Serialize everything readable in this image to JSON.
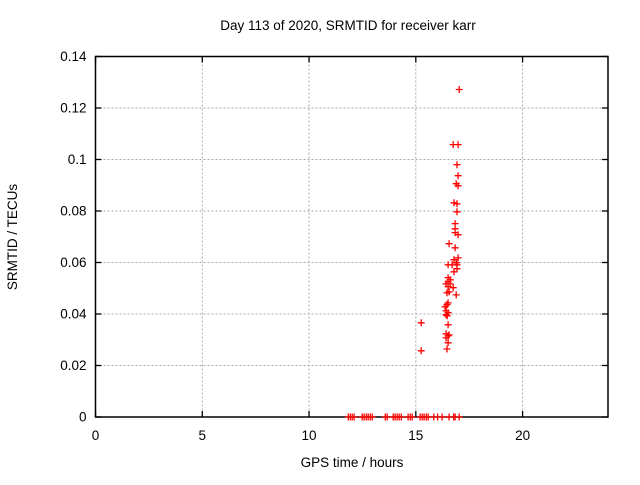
{
  "chart_data": {
    "type": "scatter",
    "title": "Day 113 of 2020, SRMTID for receiver karr",
    "xlabel": "GPS time / hours",
    "ylabel": "SRMTID / TECUs",
    "xlim": [
      0,
      24
    ],
    "ylim": [
      0,
      0.14
    ],
    "grid": true,
    "legend": "none",
    "grid_color": "#a8a8a8",
    "border_color": "#000000",
    "background_color": "#ffffff",
    "marker": {
      "shape": "plus",
      "color": "#ff0000",
      "size": 7
    },
    "x_ticks": [
      {
        "v": 0,
        "label": "0"
      },
      {
        "v": 5,
        "label": "5"
      },
      {
        "v": 10,
        "label": "10"
      },
      {
        "v": 15,
        "label": "15"
      },
      {
        "v": 20,
        "label": "20"
      }
    ],
    "y_ticks": [
      {
        "v": 0,
        "label": "0"
      },
      {
        "v": 0.02,
        "label": "0.02"
      },
      {
        "v": 0.04,
        "label": "0.04"
      },
      {
        "v": 0.06,
        "label": "0.06"
      },
      {
        "v": 0.08,
        "label": "0.08"
      },
      {
        "v": 0.1,
        "label": "0.1"
      },
      {
        "v": 0.12,
        "label": "0.12"
      },
      {
        "v": 0.14,
        "label": "0.14"
      }
    ],
    "series": [
      {
        "name": "SRMTID",
        "points": [
          [
            17.03,
            0.1272
          ],
          [
            16.75,
            0.1058
          ],
          [
            16.98,
            0.1058
          ],
          [
            16.93,
            0.098
          ],
          [
            16.98,
            0.0937
          ],
          [
            16.89,
            0.0906
          ],
          [
            16.98,
            0.0898
          ],
          [
            16.79,
            0.0832
          ],
          [
            16.93,
            0.0828
          ],
          [
            16.93,
            0.0797
          ],
          [
            16.84,
            0.0751
          ],
          [
            16.84,
            0.0731
          ],
          [
            16.84,
            0.0716
          ],
          [
            16.98,
            0.0708
          ],
          [
            16.56,
            0.0673
          ],
          [
            16.84,
            0.0657
          ],
          [
            16.98,
            0.0618
          ],
          [
            16.79,
            0.0611
          ],
          [
            16.89,
            0.0599
          ],
          [
            16.51,
            0.0591
          ],
          [
            16.7,
            0.0591
          ],
          [
            16.93,
            0.0591
          ],
          [
            16.93,
            0.0576
          ],
          [
            16.79,
            0.0564
          ],
          [
            16.51,
            0.0541
          ],
          [
            16.61,
            0.0533
          ],
          [
            16.51,
            0.0525
          ],
          [
            16.42,
            0.0517
          ],
          [
            16.61,
            0.0517
          ],
          [
            16.51,
            0.0506
          ],
          [
            16.75,
            0.0502
          ],
          [
            16.56,
            0.0486
          ],
          [
            16.46,
            0.0482
          ],
          [
            16.89,
            0.0474
          ],
          [
            16.51,
            0.0443
          ],
          [
            16.46,
            0.0436
          ],
          [
            16.37,
            0.0428
          ],
          [
            16.42,
            0.0412
          ],
          [
            16.51,
            0.0405
          ],
          [
            16.42,
            0.0397
          ],
          [
            16.47,
            0.0393
          ],
          [
            15.25,
            0.0366
          ],
          [
            16.51,
            0.0358
          ],
          [
            16.42,
            0.0323
          ],
          [
            16.56,
            0.0319
          ],
          [
            16.51,
            0.0315
          ],
          [
            16.42,
            0.0307
          ],
          [
            16.51,
            0.0288
          ],
          [
            16.46,
            0.0264
          ],
          [
            15.25,
            0.0257
          ],
          [
            11.84,
            0
          ],
          [
            11.93,
            0
          ],
          [
            12.02,
            0
          ],
          [
            12.11,
            0
          ],
          [
            12.49,
            0
          ],
          [
            12.58,
            0
          ],
          [
            12.68,
            0
          ],
          [
            12.77,
            0
          ],
          [
            12.87,
            0
          ],
          [
            12.96,
            0
          ],
          [
            13.57,
            0
          ],
          [
            13.66,
            0
          ],
          [
            13.94,
            0
          ],
          [
            14.03,
            0
          ],
          [
            14.13,
            0
          ],
          [
            14.22,
            0
          ],
          [
            14.32,
            0
          ],
          [
            14.64,
            0
          ],
          [
            14.74,
            0
          ],
          [
            14.83,
            0
          ],
          [
            15.2,
            0
          ],
          [
            15.3,
            0
          ],
          [
            15.39,
            0
          ],
          [
            15.49,
            0
          ],
          [
            15.58,
            0
          ],
          [
            15.84,
            0
          ],
          [
            16.02,
            0
          ],
          [
            16.23,
            0
          ],
          [
            16.56,
            0
          ],
          [
            16.77,
            0
          ],
          [
            16.84,
            0
          ],
          [
            17.03,
            0
          ]
        ]
      }
    ]
  }
}
